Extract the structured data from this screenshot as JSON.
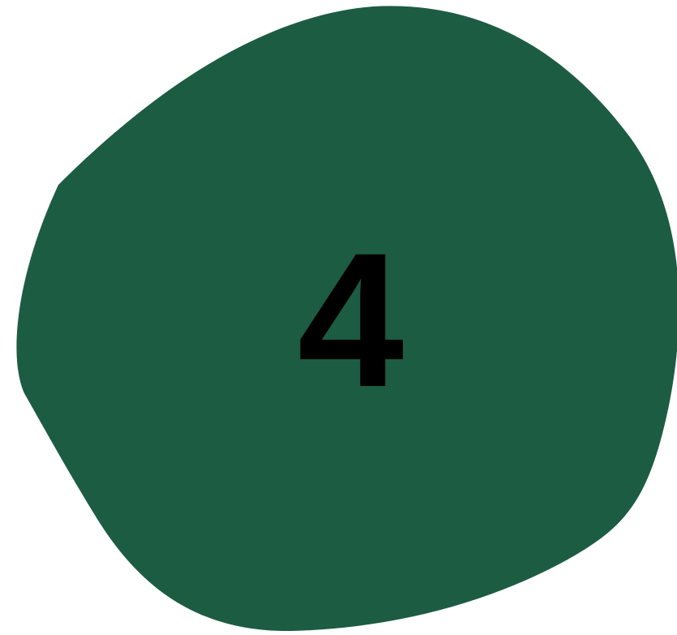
{
  "badge": {
    "number": "4",
    "blob_color": "#1c5c43",
    "text_color": "#000000"
  }
}
